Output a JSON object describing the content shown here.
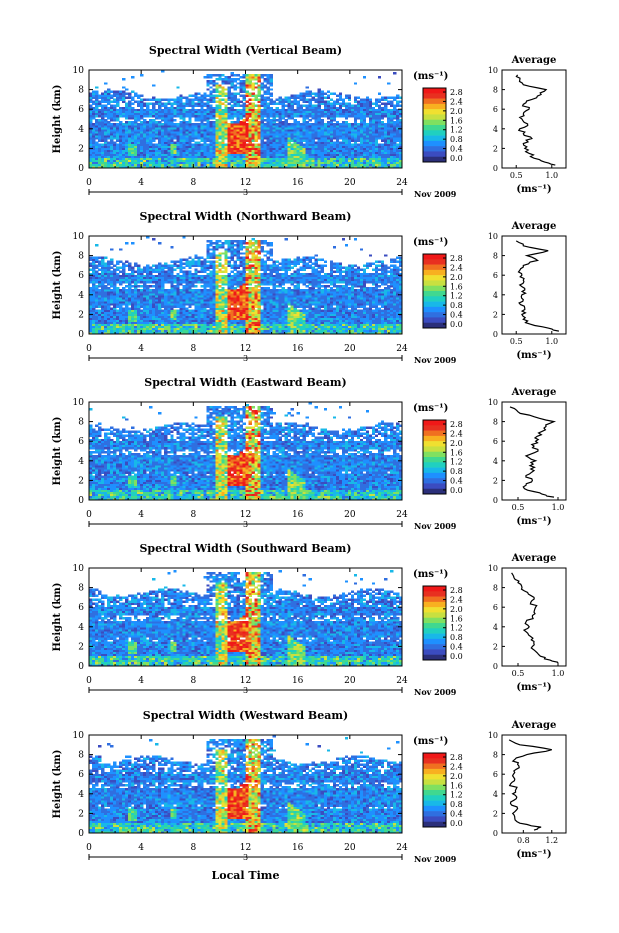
{
  "figure": {
    "date_label": "Nov 2009",
    "xlabel": "Local Time",
    "day_label": "3"
  },
  "colorbar": {
    "unit": "(ms⁻¹)",
    "ticks": [
      "2.8",
      "2.4",
      "2.0",
      "1.6",
      "1.2",
      "0.8",
      "0.4",
      "0.0"
    ],
    "colors": [
      "#2b2f7a",
      "#3b4cc0",
      "#2f6fe0",
      "#1e90ff",
      "#18b8e8",
      "#20d0c0",
      "#40d890",
      "#80e060",
      "#c8e040",
      "#f0e030",
      "#f8b020",
      "#f07020",
      "#e83020",
      "#f01818"
    ]
  },
  "chart_data": [
    {
      "type": "heatmap",
      "title": "Spectral Width (Vertical Beam)",
      "ylabel": "Height (km)",
      "xlim": [
        0,
        24
      ],
      "ylim": [
        0,
        10
      ],
      "xticks": [
        0,
        4,
        8,
        12,
        16,
        20,
        24
      ],
      "yticks": [
        0,
        2,
        4,
        6,
        8,
        10
      ],
      "colorbar_range": [
        0.0,
        2.8
      ],
      "average_profile": {
        "title": "Average",
        "xlabel": "(ms⁻¹)",
        "xticks": [
          "0.5",
          "1.0"
        ],
        "xlim": [
          0.3,
          1.2
        ],
        "height": [
          0.3,
          0.6,
          1.0,
          1.5,
          2.0,
          2.5,
          3.0,
          3.5,
          4.0,
          4.5,
          5.0,
          5.5,
          6.0,
          6.5,
          7.0,
          7.5,
          8.0,
          8.5,
          9.0,
          9.5
        ],
        "value": [
          1.05,
          0.9,
          0.75,
          0.68,
          0.62,
          0.6,
          0.72,
          0.6,
          0.55,
          0.66,
          0.58,
          0.6,
          0.68,
          0.6,
          0.72,
          0.85,
          0.92,
          0.6,
          0.55,
          0.52
        ]
      }
    },
    {
      "type": "heatmap",
      "title": "Spectral Width (Northward Beam)",
      "ylabel": "Height (km)",
      "xlim": [
        0,
        24
      ],
      "ylim": [
        0,
        10
      ],
      "xticks": [
        0,
        4,
        8,
        12,
        16,
        20,
        24
      ],
      "yticks": [
        0,
        2,
        4,
        6,
        8,
        10
      ],
      "colorbar_range": [
        0.0,
        2.8
      ],
      "average_profile": {
        "title": "Average",
        "xlabel": "(ms⁻¹)",
        "xticks": [
          "0.5",
          "1.0"
        ],
        "xlim": [
          0.3,
          1.2
        ],
        "height": [
          0.3,
          0.6,
          1.0,
          1.5,
          2.0,
          2.5,
          3.0,
          3.5,
          4.0,
          4.5,
          5.0,
          5.5,
          6.0,
          6.5,
          7.0,
          7.5,
          8.0,
          8.5,
          9.0,
          9.5
        ],
        "value": [
          1.1,
          0.95,
          0.7,
          0.6,
          0.58,
          0.62,
          0.56,
          0.6,
          0.58,
          0.62,
          0.55,
          0.6,
          0.58,
          0.55,
          0.6,
          0.8,
          0.65,
          0.95,
          0.6,
          0.5
        ]
      }
    },
    {
      "type": "heatmap",
      "title": "Spectral Width (Eastward Beam)",
      "ylabel": "Height (km)",
      "xlim": [
        0,
        24
      ],
      "ylim": [
        0,
        10
      ],
      "xticks": [
        0,
        4,
        8,
        12,
        16,
        20,
        24
      ],
      "yticks": [
        0,
        2,
        4,
        6,
        8,
        10
      ],
      "colorbar_range": [
        0.0,
        2.8
      ],
      "average_profile": {
        "title": "Average",
        "xlabel": "(ms⁻¹)",
        "xticks": [
          "0.5",
          "1.0"
        ],
        "xlim": [
          0.3,
          1.1
        ],
        "height": [
          0.3,
          0.6,
          1.0,
          1.5,
          2.0,
          2.5,
          3.0,
          3.5,
          4.0,
          4.5,
          5.0,
          5.5,
          6.0,
          6.5,
          7.0,
          7.5,
          8.0,
          8.5,
          9.0,
          9.5
        ],
        "value": [
          0.95,
          0.8,
          0.62,
          0.6,
          0.68,
          0.6,
          0.7,
          0.65,
          0.72,
          0.6,
          0.75,
          0.7,
          0.72,
          0.74,
          0.8,
          0.85,
          0.95,
          0.7,
          0.5,
          0.4
        ]
      }
    },
    {
      "type": "heatmap",
      "title": "Spectral Width (Southward Beam)",
      "ylabel": "Height (km)",
      "xlim": [
        0,
        24
      ],
      "ylim": [
        0,
        10
      ],
      "xticks": [
        0,
        4,
        8,
        12,
        16,
        20,
        24
      ],
      "yticks": [
        0,
        2,
        4,
        6,
        8,
        10
      ],
      "colorbar_range": [
        0.0,
        2.8
      ],
      "average_profile": {
        "title": "Average",
        "xlabel": "(ms⁻¹)",
        "xticks": [
          "0.5",
          "1.0"
        ],
        "xlim": [
          0.3,
          1.1
        ],
        "height": [
          0.3,
          0.6,
          1.0,
          1.5,
          2.0,
          2.5,
          3.0,
          3.5,
          4.0,
          4.5,
          5.0,
          5.5,
          6.0,
          6.5,
          7.0,
          7.5,
          8.0,
          8.5,
          9.0,
          9.5
        ],
        "value": [
          1.0,
          0.9,
          0.78,
          0.72,
          0.68,
          0.7,
          0.66,
          0.6,
          0.64,
          0.6,
          0.68,
          0.7,
          0.72,
          0.66,
          0.7,
          0.62,
          0.55,
          0.5,
          0.45,
          0.42
        ]
      }
    },
    {
      "type": "heatmap",
      "title": "Spectral Width (Westward Beam)",
      "ylabel": "Height (km)",
      "xlim": [
        0,
        24
      ],
      "ylim": [
        0,
        10
      ],
      "xticks": [
        0,
        4,
        8,
        12,
        16,
        20,
        24
      ],
      "yticks": [
        0,
        2,
        4,
        6,
        8,
        10
      ],
      "colorbar_range": [
        0.0,
        2.8
      ],
      "average_profile": {
        "title": "Average",
        "xlabel": "(ms⁻¹)",
        "xticks": [
          "0.8",
          "1.2"
        ],
        "xlim": [
          0.5,
          1.4
        ],
        "height": [
          0.3,
          0.6,
          1.0,
          1.5,
          2.0,
          2.5,
          3.0,
          3.5,
          4.0,
          4.5,
          5.0,
          5.5,
          6.0,
          6.5,
          7.0,
          7.5,
          8.0,
          8.5,
          9.0,
          9.5
        ],
        "value": [
          0.95,
          1.05,
          0.75,
          0.68,
          0.65,
          0.72,
          0.62,
          0.7,
          0.65,
          0.7,
          0.62,
          0.68,
          0.66,
          0.7,
          0.72,
          0.68,
          0.85,
          1.2,
          0.75,
          0.6
        ]
      }
    }
  ]
}
